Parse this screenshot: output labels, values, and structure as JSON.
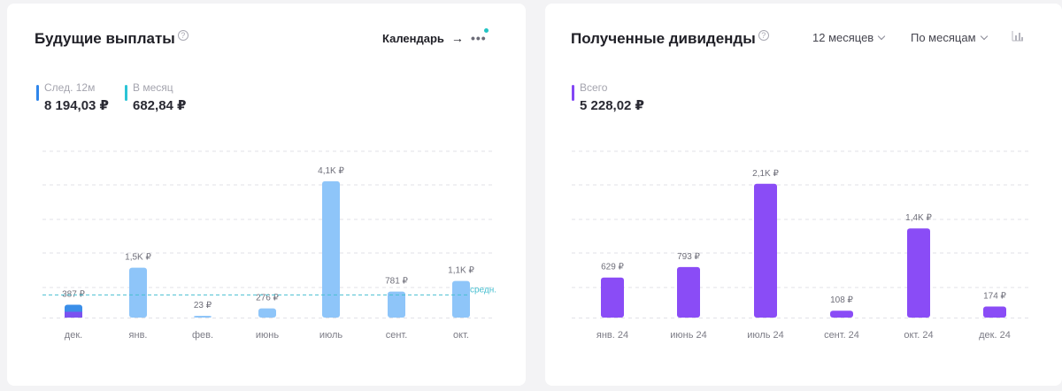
{
  "left": {
    "title": "Будущие выплаты",
    "help_glyph": "?",
    "calendar_label": "Календарь",
    "calendar_arrow": "→",
    "more_glyph": "•••",
    "stats": [
      {
        "label": "След. 12м",
        "value": "8 194,03 ₽",
        "color": "#2f86eb"
      },
      {
        "label": "В месяц",
        "value": "682,84 ₽",
        "color": "#2bc4d6"
      }
    ],
    "avg_label": "средн.",
    "chart_data": {
      "type": "bar",
      "categories": [
        "дек.",
        "янв.",
        "фев.",
        "июнь",
        "июль",
        "сент.",
        "окт."
      ],
      "values": [
        387,
        1500,
        23,
        276,
        4100,
        781,
        1100
      ],
      "data_labels": [
        "387 ₽",
        "1,5K ₽",
        "23 ₽",
        "276 ₽",
        "4,1K ₽",
        "781 ₽",
        "1,1K ₽"
      ],
      "average": 683,
      "ylim": [
        0,
        5000
      ],
      "grid": true,
      "colors": {
        "bar": "#8ec5f9",
        "paid_part": "#7b52f0",
        "first_bar_top": "#3a8ee8",
        "avg_line": "#48bfd0"
      }
    }
  },
  "right": {
    "title": "Полученные дивиденды",
    "help_glyph": "?",
    "period_select": "12 месяцев",
    "group_select": "По месяцам",
    "stats": [
      {
        "label": "Всего",
        "value": "5 228,02 ₽",
        "color": "#8347f5"
      }
    ],
    "chart_data": {
      "type": "bar",
      "categories": [
        "янв. 24",
        "июнь 24",
        "июль 24",
        "сент. 24",
        "окт. 24",
        "дек. 24"
      ],
      "values": [
        629,
        793,
        2100,
        108,
        1400,
        174
      ],
      "data_labels": [
        "629 ₽",
        "793 ₽",
        "2,1K ₽",
        "108 ₽",
        "1,4K ₽",
        "174 ₽"
      ],
      "ylim": [
        0,
        2500
      ],
      "grid": true,
      "colors": {
        "bar": "#8a4cf6"
      }
    }
  }
}
